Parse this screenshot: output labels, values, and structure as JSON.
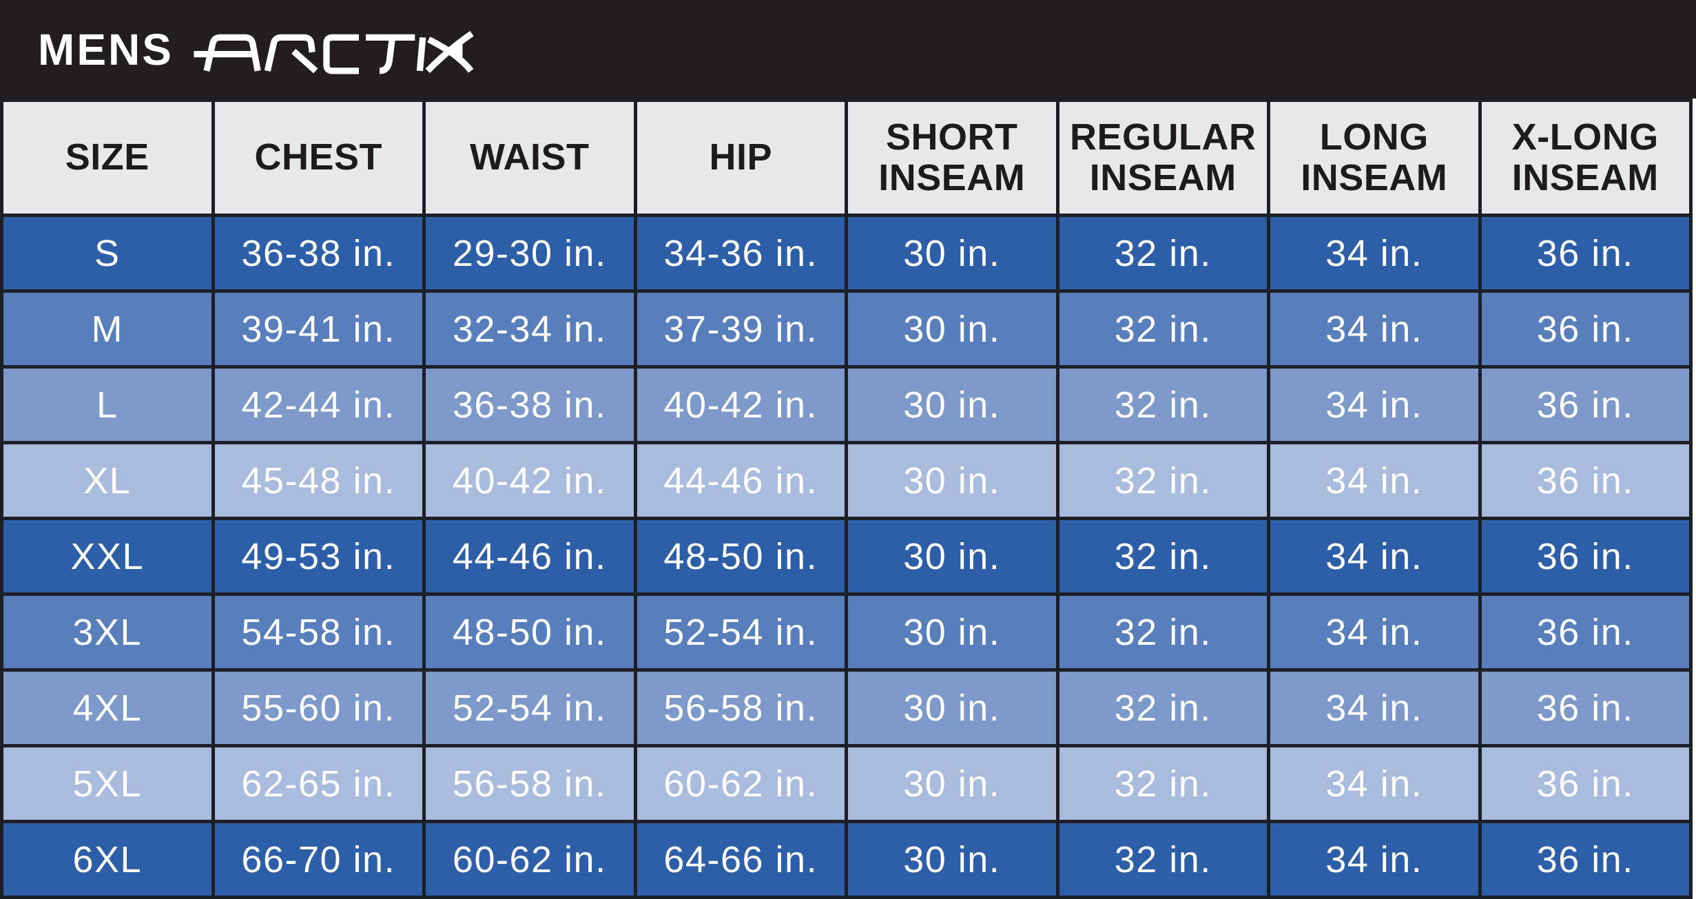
{
  "brand": {
    "prefix": "MENS",
    "logo_text": "ARCTIX"
  },
  "palette": {
    "bar_black": "#221e1f",
    "border_black": "#1c2026",
    "header_bg": "#e7e8ea",
    "header_text": "#1d1b1c",
    "cell_text": "#ffffff",
    "row_shades": {
      "dark": "#2d5fa8",
      "medium": "#587fbb",
      "light": "#7d99c9",
      "lightest": "#a9bcdd"
    }
  },
  "chart_data": {
    "type": "table",
    "title": "MENS ARCTIX",
    "columns": [
      "SIZE",
      "CHEST",
      "WAIST",
      "HIP",
      "SHORT INSEAM",
      "REGULAR INSEAM",
      "LONG INSEAM",
      "X-LONG INSEAM"
    ],
    "rows": [
      {
        "shade": "dark",
        "cells": [
          "S",
          "36-38 in.",
          "29-30 in.",
          "34-36 in.",
          "30 in.",
          "32 in.",
          "34 in.",
          "36 in."
        ]
      },
      {
        "shade": "medium",
        "cells": [
          "M",
          "39-41 in.",
          "32-34 in.",
          "37-39 in.",
          "30 in.",
          "32 in.",
          "34 in.",
          "36 in."
        ]
      },
      {
        "shade": "light",
        "cells": [
          "L",
          "42-44 in.",
          "36-38 in.",
          "40-42 in.",
          "30 in.",
          "32 in.",
          "34 in.",
          "36 in."
        ]
      },
      {
        "shade": "lightest",
        "cells": [
          "XL",
          "45-48 in.",
          "40-42 in.",
          "44-46 in.",
          "30 in.",
          "32 in.",
          "34 in.",
          "36 in."
        ]
      },
      {
        "shade": "dark",
        "cells": [
          "XXL",
          "49-53 in.",
          "44-46 in.",
          "48-50 in.",
          "30 in.",
          "32 in.",
          "34 in.",
          "36 in."
        ]
      },
      {
        "shade": "medium",
        "cells": [
          "3XL",
          "54-58 in.",
          "48-50 in.",
          "52-54 in.",
          "30 in.",
          "32 in.",
          "34 in.",
          "36 in."
        ]
      },
      {
        "shade": "light",
        "cells": [
          "4XL",
          "55-60 in.",
          "52-54 in.",
          "56-58 in.",
          "30 in.",
          "32 in.",
          "34 in.",
          "36 in."
        ]
      },
      {
        "shade": "lightest",
        "cells": [
          "5XL",
          "62-65 in.",
          "56-58 in.",
          "60-62 in.",
          "30 in.",
          "32 in.",
          "34 in.",
          "36 in."
        ]
      },
      {
        "shade": "dark",
        "cells": [
          "6XL",
          "66-70 in.",
          "60-62 in.",
          "64-66 in.",
          "30 in.",
          "32 in.",
          "34 in.",
          "36 in."
        ]
      }
    ]
  }
}
